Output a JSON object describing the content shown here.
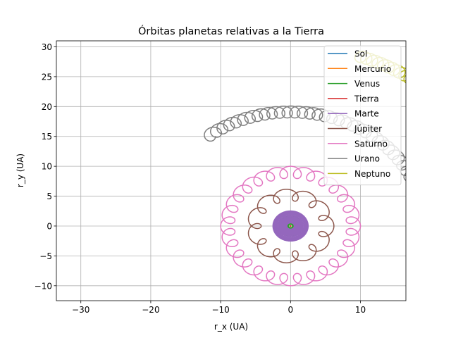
{
  "chart_data": {
    "type": "line",
    "title": "Órbitas planetas relativas a la Tierra",
    "xlabel": "r_x (UA)",
    "ylabel": "r_y (UA)",
    "xlim": [
      -33.5,
      16.5
    ],
    "ylim": [
      -12.5,
      31.0
    ],
    "xticks": [
      -30,
      -20,
      -10,
      0,
      10
    ],
    "yticks": [
      -10,
      -5,
      0,
      5,
      10,
      15,
      20,
      25,
      30
    ],
    "xtick_labels": [
      "−30",
      "−20",
      "−10",
      "0",
      "10"
    ],
    "ytick_labels": [
      "−10",
      "−5",
      "0",
      "5",
      "10",
      "15",
      "20",
      "25",
      "30"
    ],
    "grid": true,
    "legend": "top-right",
    "series": [
      {
        "name": "Sol",
        "color": "#1f77b4",
        "shape": "epicycle",
        "deferent": [
          0,
          0,
          1.0
        ],
        "epicycle_radius": 0.0,
        "cycles": 1,
        "angle_range": [
          0,
          360
        ],
        "samples": 120
      },
      {
        "name": "Mercurio",
        "color": "#ff7f0e",
        "shape": "epicycle",
        "deferent": [
          0,
          0,
          1.0
        ],
        "epicycle_radius": 0.39,
        "cycles": 40,
        "angle_range": [
          0,
          360
        ],
        "samples": 2400
      },
      {
        "name": "Venus",
        "color": "#2ca02c",
        "shape": "epicycle",
        "deferent": [
          0,
          0,
          1.0
        ],
        "epicycle_radius": 0.72,
        "cycles": 16,
        "angle_range": [
          0,
          360
        ],
        "samples": 2400
      },
      {
        "name": "Tierra",
        "color": "#d62728",
        "shape": "point",
        "x": [
          0
        ],
        "y": [
          0
        ]
      },
      {
        "name": "Marte",
        "color": "#9467bd",
        "shape": "epicycle",
        "deferent": [
          0,
          0,
          1.52
        ],
        "epicycle_radius": 1.0,
        "cycles": 53,
        "angle_range": [
          0,
          360
        ],
        "samples": 6000
      },
      {
        "name": "Júpiter",
        "color": "#8c564b",
        "shape": "epicycle",
        "deferent": [
          0,
          0,
          5.2
        ],
        "epicycle_radius": 1.0,
        "cycles": 12,
        "angle_range": [
          0,
          360
        ],
        "samples": 2400
      },
      {
        "name": "Saturno",
        "color": "#e377c2",
        "shape": "epicycle",
        "deferent": [
          0,
          0,
          9.0
        ],
        "epicycle_radius": 1.0,
        "cycles": 29,
        "angle_range": [
          0,
          360
        ],
        "samples": 4000
      },
      {
        "name": "Urano",
        "color": "#7f7f7f",
        "shape": "epicycle",
        "deferent": [
          0,
          0,
          19.1
        ],
        "epicycle_radius": 1.0,
        "cycles": 40,
        "angle_range": [
          -2,
          128
        ],
        "samples": 3000
      },
      {
        "name": "Neptuno",
        "color": "#bcbd22",
        "shape": "epicycle",
        "deferent": [
          0,
          0,
          30.1
        ],
        "epicycle_radius": 1.0,
        "cycles": 43,
        "angle_range": [
          -1,
          71
        ],
        "samples": 3000
      }
    ]
  }
}
